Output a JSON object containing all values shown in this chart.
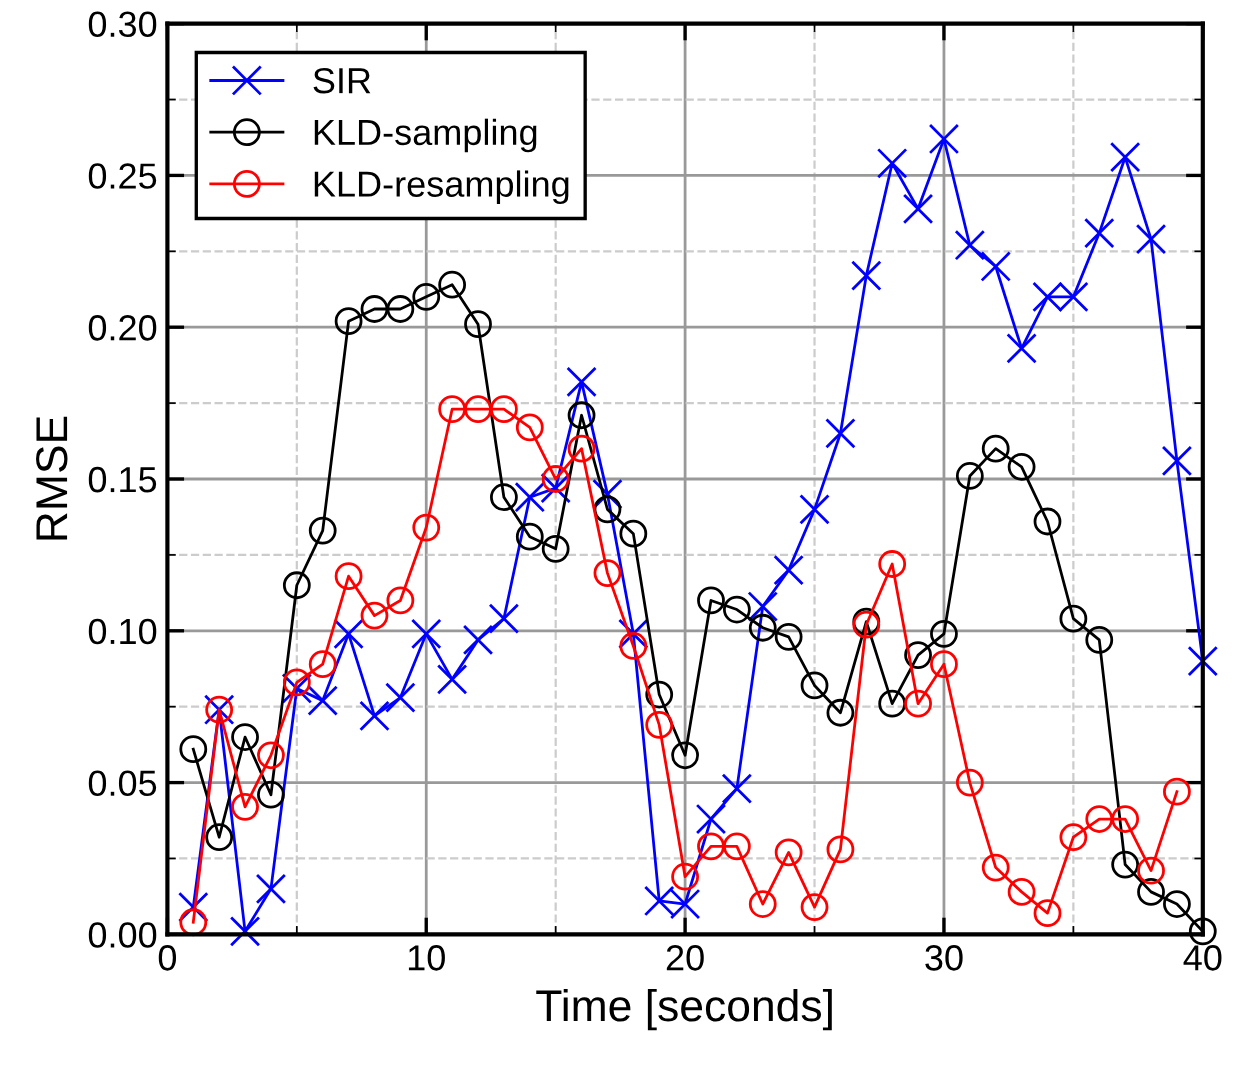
{
  "chart_data": {
    "type": "line",
    "xlabel": "Time [seconds]",
    "ylabel": "RMSE",
    "x": [
      1,
      2,
      3,
      4,
      5,
      6,
      7,
      8,
      9,
      10,
      11,
      12,
      13,
      14,
      15,
      16,
      17,
      18,
      19,
      20,
      21,
      22,
      23,
      24,
      25,
      26,
      27,
      28,
      29,
      30,
      31,
      32,
      33,
      34,
      35,
      36,
      37,
      38,
      39,
      40
    ],
    "series": [
      {
        "name": "SIR",
        "color": "#0000ff",
        "marker": "cross",
        "values": [
          0.009,
          0.074,
          0.001,
          0.015,
          0.081,
          0.077,
          0.099,
          0.072,
          0.078,
          0.099,
          0.084,
          0.097,
          0.104,
          0.144,
          0.147,
          0.182,
          0.145,
          0.099,
          0.011,
          0.01,
          0.038,
          0.048,
          0.108,
          0.12,
          0.14,
          0.165,
          0.217,
          0.254,
          0.239,
          0.262,
          0.227,
          0.22,
          0.193,
          0.21,
          0.21,
          0.231,
          0.256,
          0.229,
          0.156,
          0.09
        ]
      },
      {
        "name": "KLD-sampling",
        "color": "#000000",
        "marker": "circle",
        "values": [
          0.061,
          0.032,
          0.065,
          0.046,
          0.115,
          0.133,
          0.202,
          0.206,
          0.206,
          0.21,
          0.214,
          0.201,
          0.144,
          0.131,
          0.127,
          0.171,
          0.14,
          0.132,
          0.079,
          0.059,
          0.11,
          0.107,
          0.101,
          0.098,
          0.082,
          0.073,
          0.103,
          0.076,
          0.092,
          0.099,
          0.151,
          0.16,
          0.154,
          0.136,
          0.104,
          0.097,
          0.023,
          0.014,
          0.01,
          0.001
        ]
      },
      {
        "name": "KLD-resampling",
        "color": "#ff0000",
        "marker": "circle",
        "values": [
          0.004,
          0.074,
          0.042,
          0.059,
          0.083,
          0.089,
          0.118,
          0.105,
          0.11,
          0.134,
          0.173,
          0.173,
          0.173,
          0.167,
          0.15,
          0.16,
          0.119,
          0.095,
          0.069,
          0.019,
          0.029,
          0.029,
          0.01,
          0.027,
          0.009,
          0.028,
          0.102,
          0.122,
          0.076,
          0.089,
          0.05,
          0.022,
          0.014,
          0.007,
          0.032,
          0.038,
          0.038,
          0.021,
          0.047,
          null
        ]
      }
    ],
    "xlim": [
      0,
      40
    ],
    "xticks": [
      0,
      10,
      20,
      30,
      40
    ],
    "ylim": [
      0,
      0.3
    ],
    "yticks": [
      {
        "value": 0,
        "label": "0.00"
      },
      {
        "value": 0.05,
        "label": "0.05"
      },
      {
        "value": 0.1,
        "label": "0.10"
      },
      {
        "value": 0.15,
        "label": "0.15"
      },
      {
        "value": 0.2,
        "label": "0.20"
      },
      {
        "value": 0.25,
        "label": "0.25"
      },
      {
        "value": 0.3,
        "label": "0.30"
      }
    ],
    "grid": true,
    "legend": "top left",
    "line_style": "solid"
  }
}
